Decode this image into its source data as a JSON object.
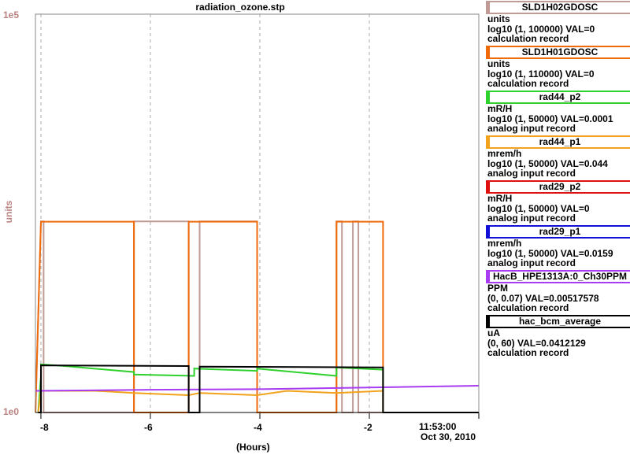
{
  "title": "radiation_ozone.stp",
  "y_axis": {
    "label": "units",
    "top_tick": "1e5",
    "bottom_tick": "1e0",
    "color": "#b9837f"
  },
  "x_axis": {
    "label": "(Hours)",
    "ticks": [
      "-8",
      "-6",
      "-4",
      "-2"
    ],
    "end_time": "11:53:00",
    "end_date": "Oct 30, 2010"
  },
  "legend": [
    {
      "name": "SLD1H02GDOSC",
      "color": "#c09a94",
      "units": "units",
      "range": "log10 (1, 100000) VAL=0",
      "record": "calculation record"
    },
    {
      "name": "SLD1H01GDOSC",
      "color": "#f06a0a",
      "units": "units",
      "range": "log10 (1, 110000) VAL=0",
      "record": "calculation record"
    },
    {
      "name": "rad44_p2",
      "color": "#2ed12e",
      "units": "mR/H",
      "range": "log10 (1, 50000) VAL=0.0001",
      "record": "analog input record"
    },
    {
      "name": "rad44_p1",
      "color": "#f2a21c",
      "units": "mrem/h",
      "range": "log10 (1, 50000) VAL=0.044",
      "record": "analog input record"
    },
    {
      "name": "rad29_p2",
      "color": "#e01010",
      "units": "mR/H",
      "range": "log10 (1, 50000) VAL=0",
      "record": "analog input record"
    },
    {
      "name": "rad29_p1",
      "color": "#1010d8",
      "units": "mrem/h",
      "range": "log10 (1, 50000) VAL=0.0159",
      "record": "analog input record"
    },
    {
      "name": "HacB_HPE1313A:0_Ch30PPM",
      "color": "#a83cf2",
      "units": "PPM",
      "range": "(0, 0.07) VAL=0.00517578",
      "record": "calculation record"
    },
    {
      "name": "hac_bcm_average",
      "color": "#000000",
      "units": "uA",
      "range": "(0, 60) VAL=0.0412129",
      "record": "calculation record"
    }
  ],
  "chart_data": {
    "type": "line",
    "title": "radiation_ozone.stp",
    "xlabel": "(Hours)",
    "ylabel": "units",
    "xlim": [
      -8.1,
      0
    ],
    "x_ticks": [
      -8,
      -6,
      -4,
      -2
    ],
    "end_time": "11:53:00",
    "end_date": "Oct 30, 2010",
    "grid": true,
    "legend_position": "right",
    "series": [
      {
        "name": "SLD1H02GDOSC",
        "color": "#c09a94",
        "scale": "log10 (1, 100000)",
        "value_now": 0,
        "x": [
          -8.1,
          -8.0,
          -7.95,
          -7.95,
          -6.3,
          -6.3,
          -6.25,
          -5.3,
          -5.3,
          -5.1,
          -5.1,
          -4.05,
          -4.05,
          -2.6,
          -2.6,
          -2.5,
          -2.5,
          -2.3,
          -2.3,
          -2.2,
          -2.2,
          -1.75,
          -1.75,
          0
        ],
        "y": [
          1,
          250,
          250,
          1,
          1,
          250,
          250,
          250,
          1,
          1,
          250,
          250,
          1,
          1,
          250,
          250,
          1,
          1,
          250,
          250,
          1,
          1,
          1,
          1
        ]
      },
      {
        "name": "SLD1H01GDOSC",
        "color": "#f06a0a",
        "scale": "log10 (1, 110000)",
        "value_now": 0,
        "x": [
          -8.1,
          -8.0,
          -6.3,
          -6.3,
          -5.3,
          -5.3,
          -4.05,
          -4.05,
          -2.6,
          -2.6,
          -1.75,
          -1.75,
          0
        ],
        "y": [
          1,
          260,
          260,
          1,
          1,
          260,
          260,
          1,
          1,
          260,
          260,
          1,
          1
        ]
      },
      {
        "name": "rad44_p2",
        "color": "#2ed12e",
        "scale": "log10 (1, 50000)",
        "value_now": 0.0001,
        "x": [
          -8.05,
          -8.0,
          -8.0,
          -7.5,
          -6.3,
          -6.3,
          -5.2,
          -5.2,
          -4.05,
          -4.05,
          -2.6,
          -2.6,
          -1.75,
          -1.75,
          0
        ],
        "y": [
          1,
          2.7,
          3.7,
          3.5,
          3.0,
          2.8,
          2.7,
          3.3,
          3.1,
          3.3,
          2.7,
          3.4,
          3.2,
          1,
          1
        ]
      },
      {
        "name": "rad44_p1",
        "color": "#f2a21c",
        "scale": "log10 (1, 50000)",
        "value_now": 0.044,
        "x": [
          -8.05,
          -8.0,
          -7.0,
          -6.3,
          -5.3,
          -5.1,
          -4.05,
          -3.5,
          -2.6,
          -1.75,
          -1.75,
          0
        ],
        "y": [
          1,
          1.8,
          1.8,
          1.7,
          1.6,
          1.7,
          1.6,
          1.8,
          1.7,
          1.8,
          1,
          1
        ]
      },
      {
        "name": "rad29_p2",
        "color": "#e01010",
        "scale": "log10 (1, 50000)",
        "value_now": 0,
        "x": [],
        "y": []
      },
      {
        "name": "rad29_p1",
        "color": "#1010d8",
        "scale": "log10 (1, 50000)",
        "value_now": 0.0159,
        "x": [],
        "y": []
      },
      {
        "name": "HacB_HPE1313A:0_Ch30PPM",
        "color": "#a83cf2",
        "scale": "(0, 0.07)",
        "value_now": 0.00517578,
        "x": [
          -8.1,
          -6.0,
          -4.0,
          -2.0,
          0
        ],
        "y": [
          0.0038,
          0.004,
          0.0041,
          0.0044,
          0.0047
        ]
      },
      {
        "name": "hac_bcm_average",
        "color": "#000000",
        "scale": "(0, 60)",
        "value_now": 0.0412129,
        "x": [
          -8.05,
          -8.0,
          -8.0,
          -5.3,
          -5.3,
          -5.1,
          -5.1,
          -1.75,
          -1.75,
          0
        ],
        "y": [
          0,
          0,
          7.1,
          7.0,
          0,
          0,
          6.9,
          6.8,
          0,
          0
        ]
      }
    ]
  }
}
